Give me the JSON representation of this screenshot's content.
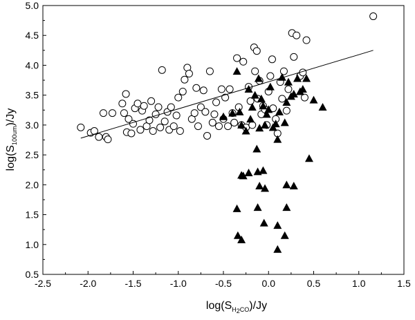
{
  "chart_data": {
    "type": "scatter",
    "xlabel": {
      "pre": "log(S",
      "sub": "H",
      "sub2": "2",
      "sub3": "CO",
      "post": ")/Jy"
    },
    "ylabel": {
      "pre": "log(S",
      "sub": "100um",
      "post": ")/Jy"
    },
    "xlim": [
      -2.5,
      1.5
    ],
    "ylim": [
      0.5,
      5.0
    ],
    "x_ticks": [
      "-2.5",
      "-2.0",
      "-1.5",
      "-1.0",
      "-0.5",
      "0.0",
      "0.5",
      "1.0",
      "1.5"
    ],
    "y_ticks": [
      "0.5",
      "1.0",
      "1.5",
      "2.0",
      "2.5",
      "3.0",
      "3.5",
      "4.0",
      "4.5",
      "5.0"
    ],
    "grid": false,
    "legend": "none",
    "series": [
      {
        "marker": "open-circle",
        "color": "#000000",
        "points": [
          [
            -2.08,
            2.96
          ],
          [
            -1.97,
            2.87
          ],
          [
            -1.93,
            2.9
          ],
          [
            -1.88,
            2.8
          ],
          [
            -1.83,
            3.2
          ],
          [
            -1.8,
            2.8
          ],
          [
            -1.78,
            2.76
          ],
          [
            -1.73,
            3.2
          ],
          [
            -1.62,
            3.36
          ],
          [
            -1.6,
            3.2
          ],
          [
            -1.58,
            3.52
          ],
          [
            -1.57,
            2.88
          ],
          [
            -1.55,
            3.1
          ],
          [
            -1.52,
            2.86
          ],
          [
            -1.5,
            3.02
          ],
          [
            -1.48,
            3.28
          ],
          [
            -1.45,
            3.36
          ],
          [
            -1.42,
            2.92
          ],
          [
            -1.4,
            3.24
          ],
          [
            -1.38,
            3.32
          ],
          [
            -1.35,
            2.98
          ],
          [
            -1.32,
            3.08
          ],
          [
            -1.3,
            3.4
          ],
          [
            -1.28,
            2.9
          ],
          [
            -1.25,
            3.18
          ],
          [
            -1.22,
            3.3
          ],
          [
            -1.2,
            2.96
          ],
          [
            -1.18,
            3.92
          ],
          [
            -1.15,
            3.06
          ],
          [
            -1.12,
            3.22
          ],
          [
            -1.1,
            2.92
          ],
          [
            -1.08,
            3.3
          ],
          [
            -1.05,
            2.98
          ],
          [
            -1.02,
            3.16
          ],
          [
            -1.0,
            3.46
          ],
          [
            -0.98,
            2.9
          ],
          [
            -0.95,
            3.56
          ],
          [
            -0.93,
            3.76
          ],
          [
            -0.9,
            3.96
          ],
          [
            -0.88,
            3.86
          ],
          [
            -0.85,
            3.1
          ],
          [
            -0.82,
            3.2
          ],
          [
            -0.8,
            3.62
          ],
          [
            -0.78,
            2.98
          ],
          [
            -0.75,
            3.3
          ],
          [
            -0.72,
            3.58
          ],
          [
            -0.7,
            3.22
          ],
          [
            -0.68,
            2.82
          ],
          [
            -0.65,
            3.9
          ],
          [
            -0.62,
            3.04
          ],
          [
            -0.6,
            3.18
          ],
          [
            -0.58,
            3.38
          ],
          [
            -0.55,
            2.98
          ],
          [
            -0.52,
            3.6
          ],
          [
            -0.5,
            3.1
          ],
          [
            -0.48,
            3.46
          ],
          [
            -0.45,
            2.98
          ],
          [
            -0.43,
            3.6
          ],
          [
            -0.4,
            3.2
          ],
          [
            -0.38,
            3.04
          ],
          [
            -0.35,
            4.12
          ],
          [
            -0.33,
            3.3
          ],
          [
            -0.3,
            3.0
          ],
          [
            -0.28,
            4.06
          ],
          [
            -0.25,
            2.96
          ],
          [
            -0.22,
            3.64
          ],
          [
            -0.2,
            3.4
          ],
          [
            -0.18,
            3.0
          ],
          [
            -0.16,
            4.3
          ],
          [
            -0.15,
            3.9
          ],
          [
            -0.13,
            4.24
          ],
          [
            -0.12,
            3.44
          ],
          [
            -0.1,
            3.74
          ],
          [
            -0.08,
            3.18
          ],
          [
            -0.06,
            3.32
          ],
          [
            -0.04,
            3.26
          ],
          [
            -0.02,
            3.0
          ],
          [
            0.0,
            3.56
          ],
          [
            0.02,
            3.82
          ],
          [
            0.04,
            4.1
          ],
          [
            0.05,
            3.28
          ],
          [
            0.08,
            3.1
          ],
          [
            0.1,
            2.86
          ],
          [
            0.13,
            3.72
          ],
          [
            0.15,
            3.44
          ],
          [
            0.17,
            3.9
          ],
          [
            0.2,
            3.24
          ],
          [
            0.22,
            3.6
          ],
          [
            0.26,
            4.54
          ],
          [
            0.28,
            4.14
          ],
          [
            0.31,
            4.5
          ],
          [
            0.35,
            3.82
          ],
          [
            0.38,
            3.88
          ],
          [
            0.4,
            3.46
          ],
          [
            0.42,
            4.42
          ],
          [
            1.16,
            4.82
          ]
        ]
      },
      {
        "marker": "filled-triangle",
        "color": "#000000",
        "points": [
          [
            -0.5,
            3.14
          ],
          [
            -0.4,
            3.2
          ],
          [
            -0.35,
            3.9
          ],
          [
            -0.32,
            3.22
          ],
          [
            -0.3,
            3.0
          ],
          [
            -0.28,
            2.15
          ],
          [
            -0.25,
            2.9
          ],
          [
            -0.22,
            3.6
          ],
          [
            -0.2,
            3.1
          ],
          [
            -0.18,
            3.3
          ],
          [
            -0.15,
            3.5
          ],
          [
            -0.13,
            2.6
          ],
          [
            -0.11,
            3.78
          ],
          [
            -0.1,
            2.95
          ],
          [
            -0.08,
            3.44
          ],
          [
            -0.06,
            3.32
          ],
          [
            -0.04,
            3.0
          ],
          [
            -0.02,
            3.18
          ],
          [
            0.0,
            3.26
          ],
          [
            0.02,
            3.64
          ],
          [
            0.05,
            2.96
          ],
          [
            0.08,
            3.02
          ],
          [
            0.1,
            2.76
          ],
          [
            0.12,
            3.22
          ],
          [
            0.15,
            3.8
          ],
          [
            0.18,
            3.04
          ],
          [
            0.2,
            3.38
          ],
          [
            0.22,
            3.72
          ],
          [
            0.25,
            3.48
          ],
          [
            0.28,
            3.52
          ],
          [
            0.32,
            3.78
          ],
          [
            0.35,
            3.56
          ],
          [
            0.38,
            3.6
          ],
          [
            0.42,
            3.78
          ],
          [
            0.5,
            3.42
          ],
          [
            0.6,
            3.3
          ],
          [
            -0.3,
            2.16
          ],
          [
            -0.22,
            2.2
          ],
          [
            -0.12,
            2.22
          ],
          [
            -0.1,
            1.98
          ],
          [
            -0.06,
            2.24
          ],
          [
            -0.04,
            1.94
          ],
          [
            0.2,
            2.0
          ],
          [
            0.28,
            1.98
          ],
          [
            0.45,
            2.44
          ],
          [
            -0.35,
            1.6
          ],
          [
            -0.12,
            1.62
          ],
          [
            0.2,
            1.62
          ],
          [
            -0.34,
            1.15
          ],
          [
            -0.3,
            1.08
          ],
          [
            -0.05,
            1.36
          ],
          [
            0.1,
            1.32
          ],
          [
            0.18,
            1.15
          ],
          [
            0.1,
            0.92
          ]
        ]
      }
    ],
    "fit_line": {
      "x": [
        -2.08,
        1.16
      ],
      "y": [
        2.78,
        4.25
      ]
    }
  }
}
